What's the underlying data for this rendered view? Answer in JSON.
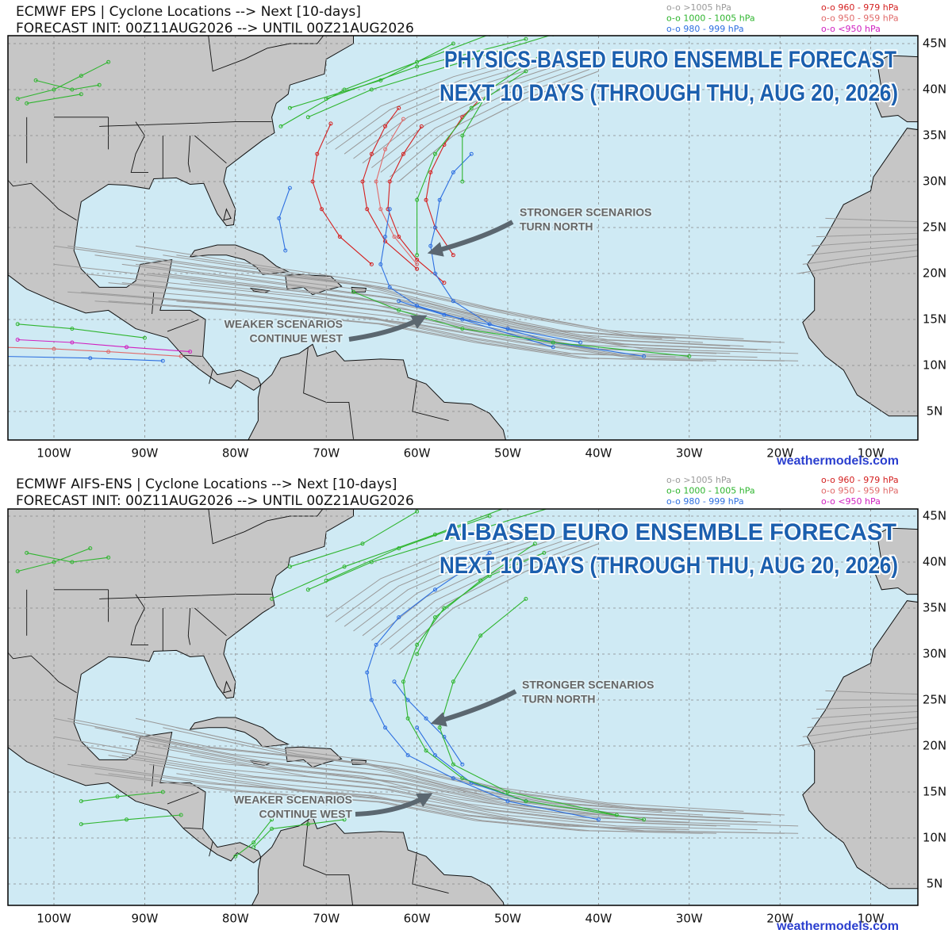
{
  "axes": {
    "lon_labels": [
      "100W",
      "90W",
      "80W",
      "70W",
      "60W",
      "50W",
      "40W",
      "30W",
      "20W",
      "10W"
    ],
    "lat_labels": [
      "45N",
      "40N",
      "35N",
      "30N",
      "25N",
      "20N",
      "15N",
      "10N",
      "5N"
    ]
  },
  "panels": [
    {
      "title": "ECMWF EPS | Cyclone Locations --> Next [10-days]",
      "init": "FORECAST INIT: 00Z11AUG2026 --> UNTIL 00Z21AUG2026",
      "legend": [
        "o-o >1005 hPa",
        "o-o 1000 - 1005 hPa",
        "o-o 980 - 999 hPa",
        "o-o 960 - 979 hPa",
        "o-o 950 - 959 hPa",
        "o-o <950 hPa"
      ],
      "headline": [
        "PHYSICS-BASED EURO ENSEMBLE FORECAST",
        "NEXT 10 DAYS (THROUGH THU, AUG 20, 2026)"
      ],
      "note_north": [
        "STRONGER SCENARIOS",
        "TURN NORTH"
      ],
      "note_west": [
        "WEAKER SCENARIOS",
        "CONTINUE WEST"
      ],
      "credit": "weathermodels.com"
    },
    {
      "title": "ECMWF AIFS-ENS | Cyclone Locations --> Next [10-days]",
      "init": "FORECAST INIT: 00Z11AUG2026 --> UNTIL 00Z21AUG2026",
      "legend": [
        "o-o >1005 hPa",
        "o-o 1000 - 1005 hPa",
        "o-o 980 - 999 hPa",
        "o-o 960 - 979 hPa",
        "o-o 950 - 959 hPa",
        "o-o <950 hPa"
      ],
      "headline": [
        "AI-BASED EURO ENSEMBLE FORECAST",
        "NEXT 10 DAYS (THROUGH THU, AUG 20, 2026)"
      ],
      "note_north": [
        "STRONGER SCENARIOS",
        "TURN NORTH"
      ],
      "note_west": [
        "WEAKER SCENARIOS",
        "CONTINUE WEST"
      ],
      "credit": "weathermodels.com"
    }
  ]
}
